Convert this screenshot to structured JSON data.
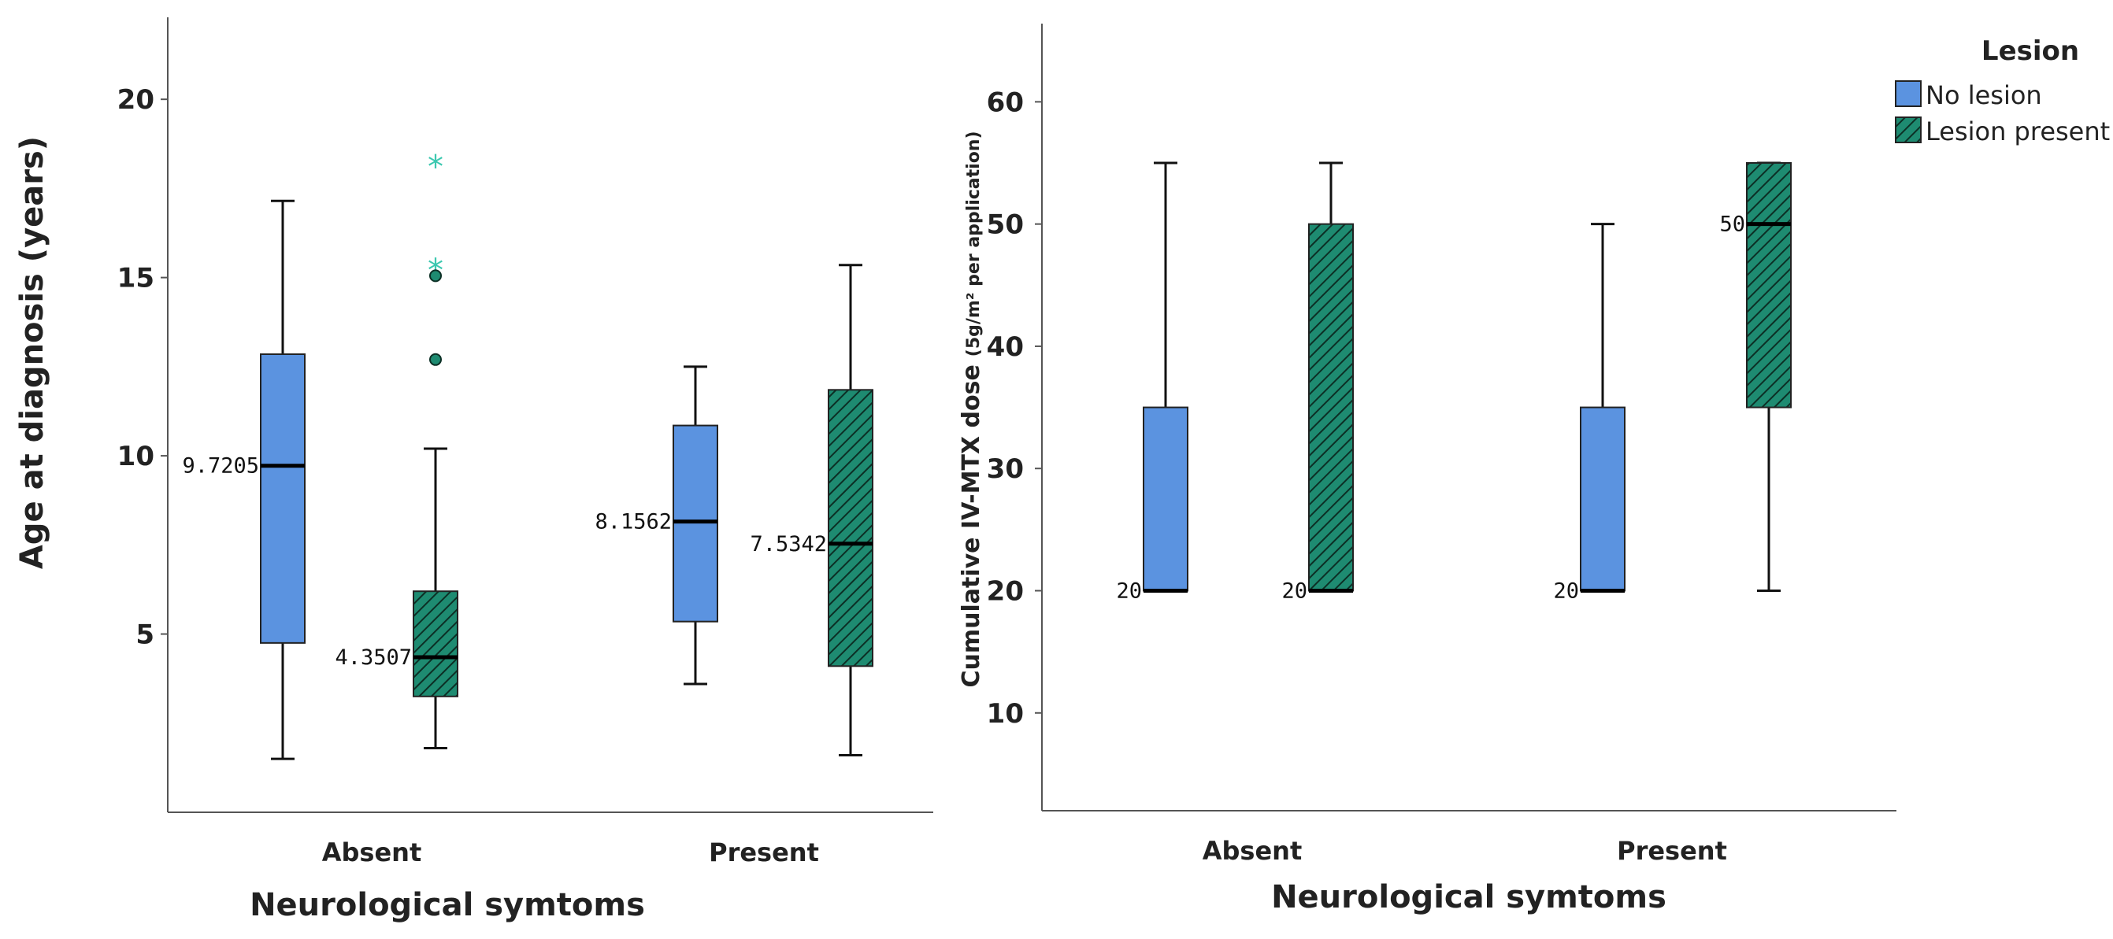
{
  "colors": {
    "no_lesion": "#5b93e0",
    "lesion_present": "#1e8b71",
    "hatch": "#0c2f25",
    "axis": "#555555",
    "outlier_star": "#3cc8b0",
    "outlier_circle": "#1e8b71"
  },
  "legend": {
    "title": "Lesion",
    "items": [
      {
        "key": "no_lesion",
        "label": "No lesion"
      },
      {
        "key": "lesion_present",
        "label": "Lesion present"
      }
    ]
  },
  "chart_data": [
    {
      "type": "boxplot",
      "title": "",
      "xlabel": "Neurological symtoms",
      "ylabel": "Age at diagnosis (years)",
      "ylim": [
        0,
        22.3
      ],
      "yticks": [
        5,
        10,
        15,
        20
      ],
      "categories": [
        "Absent",
        "Present"
      ],
      "series": [
        {
          "name": "No lesion",
          "key": "no_lesion",
          "boxes": [
            {
              "category": "Absent",
              "min": 1.5,
              "q1": 4.75,
              "median": 9.7205,
              "q3": 12.85,
              "max": 17.15,
              "median_label": "9.7205"
            },
            {
              "category": "Present",
              "min": 3.6,
              "q1": 5.35,
              "median": 8.1562,
              "q3": 10.85,
              "max": 12.5,
              "median_label": "8.1562"
            }
          ]
        },
        {
          "name": "Lesion present",
          "key": "lesion_present",
          "boxes": [
            {
              "category": "Absent",
              "min": 1.8,
              "q1": 3.25,
              "median": 4.3507,
              "q3": 6.2,
              "max": 10.2,
              "median_label": "4.3507",
              "outliers": [
                {
                  "value": 18.2,
                  "marker": "star"
                },
                {
                  "value": 15.3,
                  "marker": "star"
                },
                {
                  "value": 15.05,
                  "marker": "circle"
                },
                {
                  "value": 12.7,
                  "marker": "circle"
                }
              ]
            },
            {
              "category": "Present",
              "min": 1.6,
              "q1": 4.1,
              "median": 7.5342,
              "q3": 11.85,
              "max": 15.35,
              "median_label": "7.5342"
            }
          ]
        }
      ]
    },
    {
      "type": "boxplot",
      "title": "",
      "xlabel": "Neurological symtoms",
      "ylabel": "Cumulative IV-MTX dose",
      "ylabel_suffix": "(5g/m² per application)",
      "ylim": [
        2,
        66.4
      ],
      "yticks": [
        10,
        20,
        30,
        40,
        50,
        60
      ],
      "categories": [
        "Absent",
        "Present"
      ],
      "series": [
        {
          "name": "No lesion",
          "key": "no_lesion",
          "boxes": [
            {
              "category": "Absent",
              "min": 20,
              "q1": 20,
              "median": 20,
              "q3": 35,
              "max": 55,
              "median_label": "20"
            },
            {
              "category": "Present",
              "min": 20,
              "q1": 20,
              "median": 20,
              "q3": 35,
              "max": 50,
              "median_label": "20"
            }
          ]
        },
        {
          "name": "Lesion present",
          "key": "lesion_present",
          "boxes": [
            {
              "category": "Absent",
              "min": 20,
              "q1": 20,
              "median": 20,
              "q3": 50,
              "max": 55,
              "median_label": "20"
            },
            {
              "category": "Present",
              "min": 20,
              "q1": 35,
              "median": 50,
              "q3": 55,
              "max": 55,
              "median_label": "50"
            }
          ]
        }
      ]
    }
  ]
}
